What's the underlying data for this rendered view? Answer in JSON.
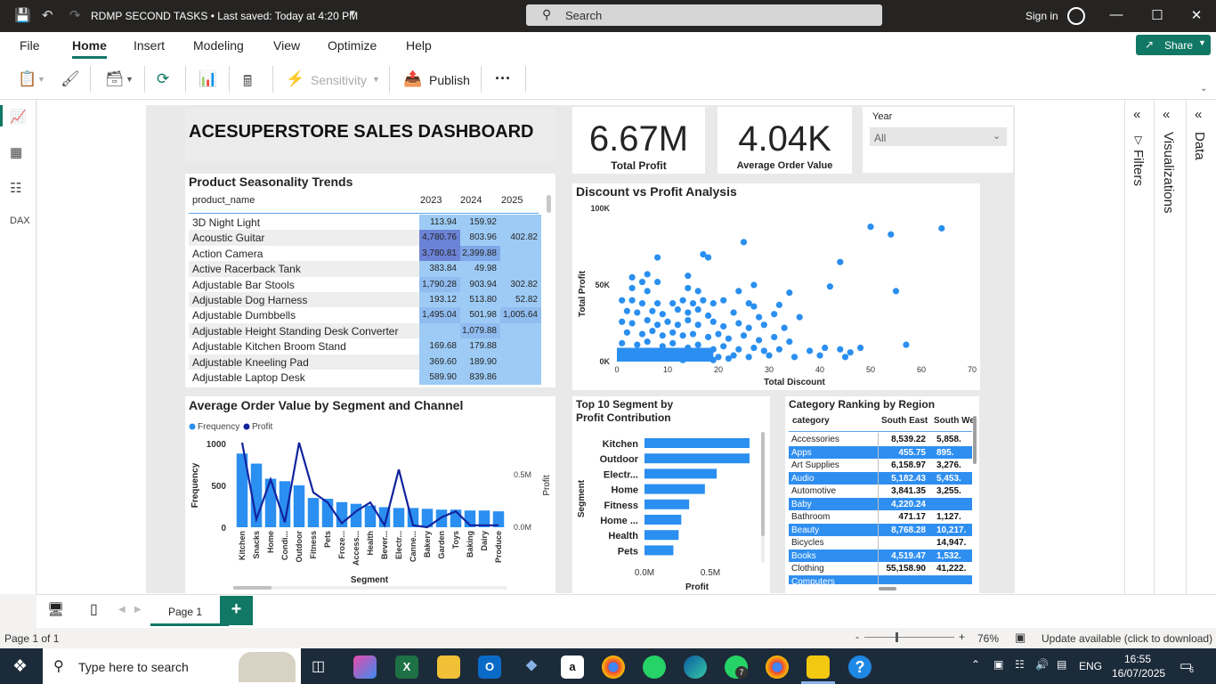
{
  "titlebar": {
    "title": "RDMP SECOND TASKS • Last saved: Today at 4:20 PM",
    "search_label": "Search",
    "signin": "Sign in"
  },
  "menu": [
    "File",
    "Home",
    "Insert",
    "Modeling",
    "View",
    "Optimize",
    "Help"
  ],
  "share_label": "Share",
  "ribbon": {
    "sensitivity": "Sensitivity",
    "publish": "Publish",
    "more": "···"
  },
  "dashboard": {
    "title": "ACESUPERSTORE SALES DASHBOARD",
    "kpi_profit": {
      "value": "6.67M",
      "label": "Total Profit"
    },
    "kpi_aov": {
      "value": "4.04K",
      "label": "Average Order Value"
    },
    "year_slicer": {
      "label": "Year",
      "value": "All"
    }
  },
  "seasonality": {
    "title": "Product Seasonality Trends",
    "columns": [
      "product_name",
      "2023",
      "2024",
      "2025"
    ],
    "rows": [
      {
        "name": "3D Night Light",
        "v": [
          "113.94",
          "159.92",
          ""
        ]
      },
      {
        "name": "Acoustic Guitar",
        "v": [
          "4,780.76",
          "803.96",
          "402.82"
        ]
      },
      {
        "name": "Action Camera",
        "v": [
          "3,780.81",
          "2,399.88",
          ""
        ]
      },
      {
        "name": "Active Racerback Tank",
        "v": [
          "383.84",
          "49.98",
          ""
        ]
      },
      {
        "name": "Adjustable Bar Stools",
        "v": [
          "1,790.28",
          "903.94",
          "302.82"
        ]
      },
      {
        "name": "Adjustable Dog Harness",
        "v": [
          "193.12",
          "513.80",
          "52.82"
        ]
      },
      {
        "name": "Adjustable Dumbbells",
        "v": [
          "1,495.04",
          "501.98",
          "1,005.64"
        ]
      },
      {
        "name": "Adjustable Height Standing Desk Converter",
        "v": [
          "",
          "1,079.88",
          ""
        ]
      },
      {
        "name": "Adjustable Kitchen Broom Stand",
        "v": [
          "169.68",
          "179.88",
          ""
        ]
      },
      {
        "name": "Adjustable Kneeling Pad",
        "v": [
          "369.60",
          "189.90",
          ""
        ]
      },
      {
        "name": "Adjustable Laptop Desk",
        "v": [
          "589.90",
          "839.86",
          ""
        ]
      }
    ]
  },
  "region_table": {
    "title": "Category Ranking by Region",
    "columns": [
      "category",
      "South East",
      "South We"
    ],
    "rows": [
      {
        "name": "Accessories",
        "a": "8,539.22",
        "b": "5,858."
      },
      {
        "name": "Apps",
        "a": "455.75",
        "b": "895."
      },
      {
        "name": "Art Supplies",
        "a": "6,158.97",
        "b": "3,276."
      },
      {
        "name": "Audio",
        "a": "5,182.43",
        "b": "5,453."
      },
      {
        "name": "Automotive",
        "a": "3,841.35",
        "b": "3,255."
      },
      {
        "name": "Baby",
        "a": "4,220.24",
        "b": ""
      },
      {
        "name": "Bathroom",
        "a": "471.17",
        "b": "1,127."
      },
      {
        "name": "Beauty",
        "a": "8,768.28",
        "b": "10,217."
      },
      {
        "name": "Bicycles",
        "a": "",
        "b": "14,947."
      },
      {
        "name": "Books",
        "a": "4,519.47",
        "b": "1,532."
      },
      {
        "name": "Clothing",
        "a": "55,158.90",
        "b": "41,222."
      },
      {
        "name": "Computers",
        "a": "",
        "b": ""
      }
    ]
  },
  "chart_data": [
    {
      "type": "scatter",
      "title": "Discount vs Profit Analysis",
      "xlabel": "Total Discount",
      "ylabel": "Total Profit",
      "xlim": [
        0,
        70
      ],
      "ylim": [
        0,
        100000
      ],
      "xticks": [
        "0",
        "10",
        "20",
        "30",
        "40",
        "50",
        "60",
        "70"
      ],
      "yticks": [
        "0K",
        "50K",
        "100K"
      ],
      "points": [
        [
          50,
          88000
        ],
        [
          54,
          83000
        ],
        [
          64,
          87000
        ],
        [
          25,
          78000
        ],
        [
          17,
          70000
        ],
        [
          18,
          68000
        ],
        [
          44,
          65000
        ],
        [
          8,
          68000
        ],
        [
          3,
          55000
        ],
        [
          5,
          52000
        ],
        [
          6,
          57000
        ],
        [
          14,
          56000
        ],
        [
          8,
          52000
        ],
        [
          3,
          48000
        ],
        [
          6,
          46000
        ],
        [
          14,
          48000
        ],
        [
          16,
          46000
        ],
        [
          24,
          46000
        ],
        [
          27,
          50000
        ],
        [
          34,
          45000
        ],
        [
          42,
          49000
        ],
        [
          55,
          46000
        ],
        [
          1,
          40000
        ],
        [
          3,
          40000
        ],
        [
          5,
          38000
        ],
        [
          8,
          38000
        ],
        [
          11,
          38000
        ],
        [
          13,
          40000
        ],
        [
          15,
          38000
        ],
        [
          17,
          40000
        ],
        [
          19,
          38000
        ],
        [
          21,
          40000
        ],
        [
          26,
          38000
        ],
        [
          27,
          36000
        ],
        [
          32,
          37000
        ],
        [
          2,
          33000
        ],
        [
          4,
          32000
        ],
        [
          7,
          33000
        ],
        [
          9,
          31000
        ],
        [
          12,
          34000
        ],
        [
          14,
          32000
        ],
        [
          16,
          34000
        ],
        [
          18,
          30000
        ],
        [
          23,
          32000
        ],
        [
          28,
          29000
        ],
        [
          31,
          31000
        ],
        [
          36,
          29000
        ],
        [
          1,
          26000
        ],
        [
          3,
          25000
        ],
        [
          6,
          27000
        ],
        [
          8,
          24000
        ],
        [
          10,
          26000
        ],
        [
          12,
          24000
        ],
        [
          14,
          27000
        ],
        [
          16,
          24000
        ],
        [
          19,
          26000
        ],
        [
          21,
          23000
        ],
        [
          24,
          25000
        ],
        [
          26,
          22000
        ],
        [
          29,
          24000
        ],
        [
          33,
          22000
        ],
        [
          2,
          19000
        ],
        [
          5,
          18000
        ],
        [
          7,
          20000
        ],
        [
          9,
          17000
        ],
        [
          11,
          19000
        ],
        [
          13,
          17000
        ],
        [
          15,
          18000
        ],
        [
          18,
          16000
        ],
        [
          20,
          18000
        ],
        [
          22,
          15000
        ],
        [
          25,
          17000
        ],
        [
          28,
          14000
        ],
        [
          31,
          16000
        ],
        [
          34,
          13000
        ],
        [
          1,
          12000
        ],
        [
          4,
          11000
        ],
        [
          6,
          13000
        ],
        [
          9,
          10000
        ],
        [
          11,
          12000
        ],
        [
          14,
          9000
        ],
        [
          16,
          11000
        ],
        [
          19,
          8000
        ],
        [
          21,
          10000
        ],
        [
          24,
          8000
        ],
        [
          27,
          9000
        ],
        [
          29,
          7000
        ],
        [
          32,
          8000
        ],
        [
          38,
          7000
        ],
        [
          41,
          9000
        ],
        [
          44,
          8000
        ],
        [
          46,
          6000
        ],
        [
          48,
          9000
        ],
        [
          2,
          6000
        ],
        [
          4,
          5000
        ],
        [
          7,
          6000
        ],
        [
          9,
          4000
        ],
        [
          12,
          5000
        ],
        [
          15,
          4000
        ],
        [
          17,
          5000
        ],
        [
          20,
          3000
        ],
        [
          23,
          4000
        ],
        [
          26,
          3000
        ],
        [
          30,
          4000
        ],
        [
          35,
          3000
        ],
        [
          40,
          4000
        ],
        [
          45,
          3000
        ],
        [
          57,
          11000
        ],
        [
          1,
          3000
        ],
        [
          3,
          2000
        ],
        [
          5,
          3000
        ],
        [
          7,
          2000
        ],
        [
          10,
          2000
        ],
        [
          13,
          1000
        ],
        [
          16,
          2000
        ],
        [
          19,
          1000
        ],
        [
          22,
          2000
        ]
      ]
    },
    {
      "type": "bar",
      "title": "Average Order Value by Segment and Channel",
      "xlabel": "Segment",
      "ylabel": "Frequency",
      "y2label": "Profit",
      "ylim": [
        0,
        1000
      ],
      "yticks": [
        "0",
        "500",
        "1000"
      ],
      "y2ticks": [
        "0.0M",
        "0.5M"
      ],
      "legend": [
        "Frequency",
        "Profit"
      ],
      "categories": [
        "Kitchen",
        "Snacks",
        "Home",
        "Condi...",
        "Outdoor",
        "Fitness",
        "Pets",
        "Froze...",
        "Access...",
        "Health",
        "Bever...",
        "Electr...",
        "Canne...",
        "Bakery",
        "Garden",
        "Toys",
        "Baking",
        "Dairy",
        "Produce"
      ],
      "series": [
        {
          "name": "Frequency",
          "values": [
            880,
            760,
            580,
            550,
            500,
            350,
            340,
            300,
            280,
            260,
            240,
            230,
            230,
            220,
            210,
            210,
            200,
            200,
            190
          ]
        },
        {
          "name": "Profit",
          "values": [
            0.85,
            0.08,
            0.48,
            0.05,
            0.85,
            0.35,
            0.25,
            0.04,
            0.16,
            0.25,
            0.02,
            0.58,
            0.02,
            0.0,
            0.1,
            0.16,
            0.02,
            0.02,
            0.02
          ]
        }
      ]
    },
    {
      "type": "bar",
      "orientation": "horizontal",
      "title": "Top 10 Segment by Profit Contribution",
      "xlabel": "Profit",
      "ylabel": "Segment",
      "xticks": [
        "0.0M",
        "0.5M"
      ],
      "categories": [
        "Kitchen",
        "Outdoor",
        "Electr...",
        "Home",
        "Fitness",
        "Home ...",
        "Health",
        "Pets"
      ],
      "values": [
        0.8,
        0.8,
        0.55,
        0.46,
        0.34,
        0.28,
        0.26,
        0.22
      ]
    }
  ],
  "tabs": {
    "page1": "Page 1",
    "add": "+"
  },
  "status": {
    "pages": "Page 1 of 1",
    "zoom": "76%",
    "update": "Update available (click to download)"
  },
  "taskbar": {
    "search": "Type here to search",
    "lang": "ENG",
    "time": "16:55",
    "date": "16/07/2025",
    "badge_whatsapp": "7",
    "badge_notif": "6"
  },
  "panes": {
    "filters": "Filters",
    "visualizations": "Visualizations",
    "data": "Data"
  }
}
